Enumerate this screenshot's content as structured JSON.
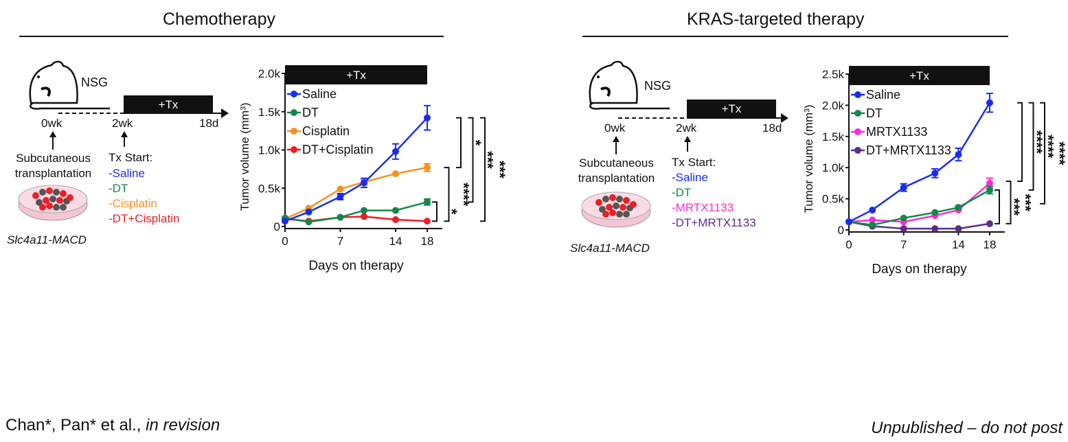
{
  "panels": [
    {
      "title": "Chemotherapy",
      "schematic": {
        "host": "NSG",
        "tx_label": "+Tx",
        "t0": "0wk",
        "t1": "2wk",
        "t2": "18d",
        "transplant": "Subcutaneous transplantation",
        "tx_start": "Tx Start:",
        "groups": [
          {
            "label": "-Saline",
            "color": "#1a2cf0"
          },
          {
            "label": "-DT",
            "color": "#14874a"
          },
          {
            "label": "-Cisplatin",
            "color": "#f7901e"
          },
          {
            "label": "-DT+Cisplatin",
            "color": "#ee1c24"
          }
        ],
        "cell_line": "Slc4a11-MACD"
      }
    },
    {
      "title": "KRAS-targeted therapy",
      "schematic": {
        "host": "NSG",
        "tx_label": "+Tx",
        "t0": "0wk",
        "t1": "2wk",
        "t2": "18d",
        "transplant": "Subcutaneous transplantation",
        "tx_start": "Tx Start:",
        "groups": [
          {
            "label": "-Saline",
            "color": "#1a2cf0"
          },
          {
            "label": "-DT",
            "color": "#14874a"
          },
          {
            "label": "-MRTX1133",
            "color": "#ff2bd6"
          },
          {
            "label": "-DT+MRTX1133",
            "color": "#5b2d8e"
          }
        ],
        "cell_line": "Slc4a11-MACD"
      }
    }
  ],
  "chart_data": [
    {
      "type": "line",
      "title": "",
      "tx_label": "+Tx",
      "xlabel": "Days on therapy",
      "ylabel": "Tumor volume (mm³)",
      "xlim": [
        0,
        18
      ],
      "ylim": [
        0,
        2000
      ],
      "xticks": [
        0,
        7,
        14,
        18
      ],
      "yticks": [
        0,
        500,
        1000,
        1500,
        2000
      ],
      "yticklabels": [
        "0",
        "0.5k",
        "1.0k",
        "1.5k",
        "2.0k"
      ],
      "x": [
        0,
        3,
        7,
        10,
        14,
        18
      ],
      "series": [
        {
          "name": "Saline",
          "color": "#1a2cf0",
          "values": [
            70,
            190,
            390,
            570,
            980,
            1420
          ],
          "err": [
            15,
            20,
            40,
            60,
            100,
            160
          ]
        },
        {
          "name": "DT",
          "color": "#14874a",
          "values": [
            110,
            60,
            120,
            210,
            210,
            320
          ],
          "err": [
            10,
            10,
            10,
            15,
            15,
            40
          ]
        },
        {
          "name": "Cisplatin",
          "color": "#f7901e",
          "values": [
            100,
            240,
            490,
            580,
            690,
            770
          ],
          "err": [
            10,
            15,
            20,
            30,
            20,
            50
          ]
        },
        {
          "name": "DT+Cisplatin",
          "color": "#ee1c24",
          "values": [
            100,
            70,
            120,
            130,
            90,
            70
          ],
          "err": [
            10,
            10,
            10,
            10,
            10,
            10
          ]
        }
      ],
      "significance": [
        {
          "label": "*",
          "from": 320,
          "to": 70
        },
        {
          "label": "****",
          "from": 770,
          "to": 70
        },
        {
          "label": "*",
          "from": 1420,
          "to": 770
        },
        {
          "label": "***",
          "from": 1420,
          "to": 320
        },
        {
          "label": "***",
          "from": 1420,
          "to": 70
        }
      ],
      "legend": "top-left"
    },
    {
      "type": "line",
      "title": "",
      "tx_label": "+Tx",
      "xlabel": "Days on therapy",
      "ylabel": "Tumor volume (mm³)",
      "xlim": [
        0,
        18
      ],
      "ylim": [
        0,
        2500
      ],
      "xticks": [
        0,
        7,
        14,
        18
      ],
      "yticks": [
        0,
        500,
        1000,
        1500,
        2000,
        2500
      ],
      "yticklabels": [
        "0",
        "0.5k",
        "1.0k",
        "1.5k",
        "2.0k",
        "2.5k"
      ],
      "x": [
        0,
        3,
        7,
        11,
        14,
        18
      ],
      "series": [
        {
          "name": "Saline",
          "color": "#1a2cf0",
          "values": [
            130,
            320,
            680,
            910,
            1210,
            2040
          ],
          "err": [
            15,
            20,
            60,
            70,
            100,
            150
          ]
        },
        {
          "name": "DT",
          "color": "#14874a",
          "values": [
            130,
            80,
            190,
            280,
            360,
            640
          ],
          "err": [
            10,
            10,
            15,
            20,
            30,
            60
          ]
        },
        {
          "name": "MRTX1133",
          "color": "#ff2bd6",
          "values": [
            130,
            160,
            130,
            230,
            320,
            750
          ],
          "err": [
            10,
            10,
            10,
            15,
            20,
            80
          ]
        },
        {
          "name": "DT+MRTX1133",
          "color": "#5b2d8e",
          "values": [
            130,
            60,
            20,
            20,
            20,
            100
          ],
          "err": [
            10,
            5,
            5,
            5,
            5,
            10
          ]
        }
      ],
      "significance": [
        {
          "label": "***",
          "from": 640,
          "to": 100
        },
        {
          "label": "***",
          "from": 780,
          "to": 100
        },
        {
          "label": "****",
          "from": 2040,
          "to": 780
        },
        {
          "label": "****",
          "from": 2040,
          "to": 640
        },
        {
          "label": "****",
          "from": 2040,
          "to": 420
        }
      ],
      "legend": "top-left"
    }
  ],
  "footer": {
    "left_authors": "Chan*, Pan* et al., ",
    "left_status": "in revision",
    "right": "Unpublished – do not post"
  }
}
